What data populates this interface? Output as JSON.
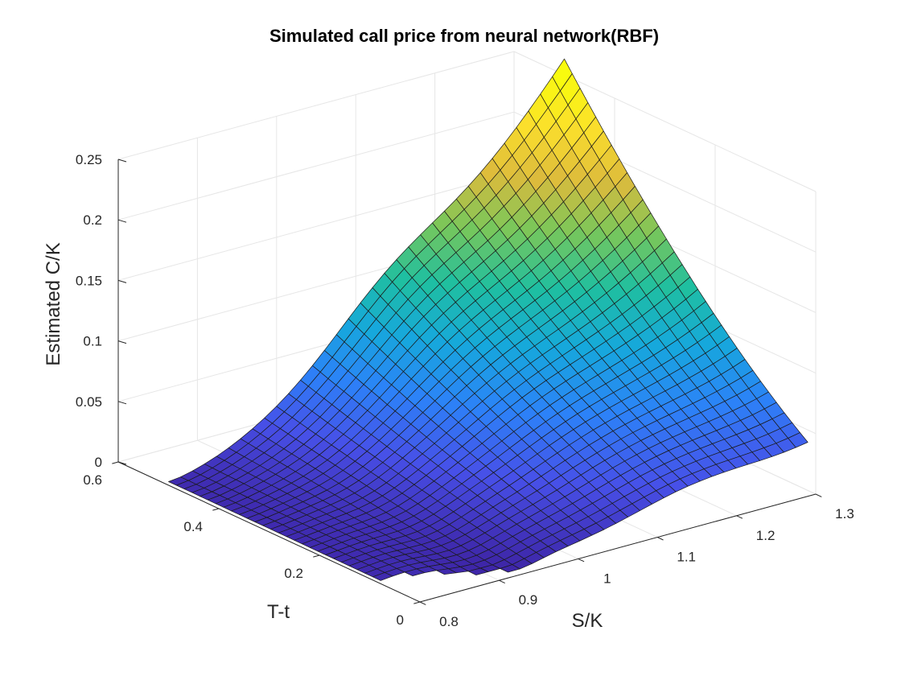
{
  "chart_data": {
    "type": "surface",
    "title": "Simulated call price from neural network(RBF)",
    "xlabel": "S/K",
    "ylabel": "T-t",
    "zlabel": "Estimated C/K",
    "xlim": [
      0.8,
      1.3
    ],
    "ylim": [
      0,
      0.6
    ],
    "zlim": [
      0,
      0.25
    ],
    "xticks": [
      "0.8",
      "0.9",
      "1",
      "1.1",
      "1.2",
      "1.3"
    ],
    "yticks": [
      "0",
      "0.2",
      "0.4",
      "0.6"
    ],
    "zticks": [
      "0",
      "0.05",
      "0.1",
      "0.15",
      "0.2",
      "0.25"
    ],
    "grid": true,
    "colormap": "parula",
    "colors": {
      "colormap_stops": [
        "#3e26a8",
        "#4750e8",
        "#2c82f8",
        "#16a8dc",
        "#1fbfa0",
        "#79c75a",
        "#ddbb3c",
        "#fbdf2c",
        "#f9fb0e"
      ],
      "grid": "#e6e6e6",
      "axis": "#262626",
      "edges": "#1a1a1a"
    },
    "surface": {
      "s_range": [
        0.8,
        1.3
      ],
      "t_range": [
        0,
        0.5
      ],
      "n_s": 34,
      "n_t": 33,
      "values_at_corners": [
        {
          "s_over_k": 0.8,
          "t_minus_t": 0.5,
          "c_over_k": 0.005
        },
        {
          "s_over_k": 0.95,
          "t_minus_t": 0.1,
          "c_over_k": 0.0
        },
        {
          "s_over_k": 1.3,
          "t_minus_t": 0.0,
          "c_over_k": 0.02
        },
        {
          "s_over_k": 1.3,
          "t_minus_t": 0.5,
          "c_over_k": 0.26
        }
      ]
    }
  }
}
